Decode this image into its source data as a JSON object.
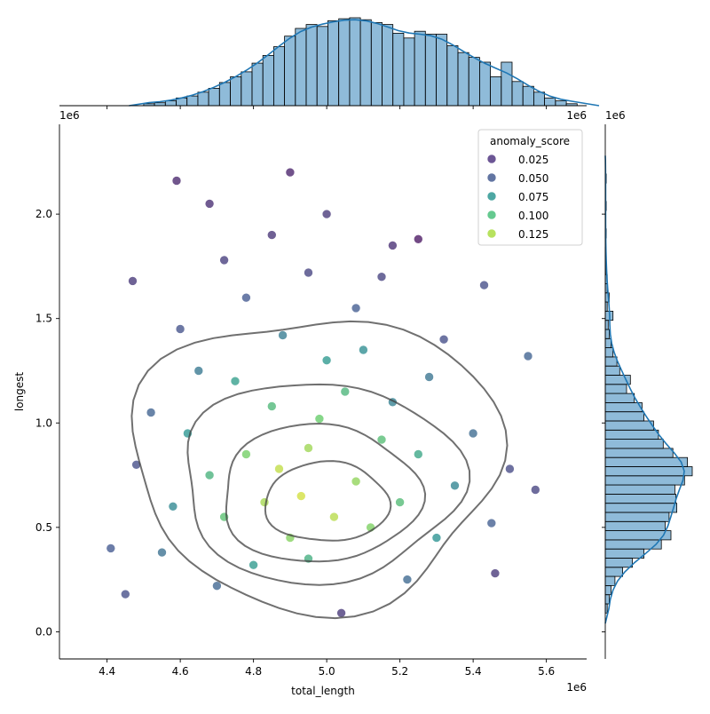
{
  "chart_data": {
    "type": "scatter",
    "title": "",
    "xlabel": "total_length",
    "ylabel": "longest",
    "x_offset_label": "1e6",
    "y_offset_label": "1e6",
    "xlim": [
      4.27,
      5.71
    ],
    "ylim": [
      -0.13,
      2.43
    ],
    "x_ticks": [
      4.4,
      4.6,
      4.8,
      5.0,
      5.2,
      5.4,
      5.6
    ],
    "x_tick_labels": [
      "4.4",
      "4.6",
      "4.8",
      "5.0",
      "5.2",
      "5.4",
      "5.6"
    ],
    "y_ticks": [
      0.0,
      0.5,
      1.0,
      1.5,
      2.0
    ],
    "y_tick_labels": [
      "0.0",
      "0.5",
      "1.0",
      "1.5",
      "2.0"
    ],
    "grid": false,
    "legend": {
      "title": "anomaly_score",
      "placement": "top-right",
      "entries": [
        {
          "label": "0.025",
          "color": "#472c7a"
        },
        {
          "label": "0.050",
          "color": "#3b528b"
        },
        {
          "label": "0.075",
          "color": "#21918c"
        },
        {
          "label": "0.100",
          "color": "#3fbc73"
        },
        {
          "label": "0.125",
          "color": "#a5db36"
        }
      ]
    },
    "colormap": "viridis",
    "color_range": [
      0.0,
      0.14
    ],
    "points": [
      [
        4.93,
        0.65,
        0.13
      ],
      [
        4.87,
        0.78,
        0.126
      ],
      [
        5.02,
        0.55,
        0.124
      ],
      [
        4.95,
        0.88,
        0.118
      ],
      [
        4.83,
        0.62,
        0.12
      ],
      [
        5.08,
        0.72,
        0.115
      ],
      [
        4.98,
        1.02,
        0.105
      ],
      [
        4.78,
        0.85,
        0.108
      ],
      [
        5.12,
        0.5,
        0.11
      ],
      [
        4.9,
        0.45,
        0.112
      ],
      [
        5.15,
        0.92,
        0.095
      ],
      [
        4.72,
        0.55,
        0.098
      ],
      [
        5.05,
        1.15,
        0.09
      ],
      [
        4.85,
        1.08,
        0.092
      ],
      [
        5.2,
        0.62,
        0.094
      ],
      [
        4.68,
        0.75,
        0.088
      ],
      [
        4.95,
        0.35,
        0.085
      ],
      [
        5.25,
        0.85,
        0.08
      ],
      [
        4.75,
        1.2,
        0.075
      ],
      [
        5.0,
        1.3,
        0.072
      ],
      [
        4.62,
        0.95,
        0.07
      ],
      [
        5.3,
        0.45,
        0.068
      ],
      [
        4.8,
        0.32,
        0.073
      ],
      [
        5.1,
        1.35,
        0.065
      ],
      [
        4.58,
        0.6,
        0.062
      ],
      [
        5.35,
        0.7,
        0.06
      ],
      [
        4.88,
        1.42,
        0.055
      ],
      [
        5.18,
        1.1,
        0.058
      ],
      [
        4.65,
        1.25,
        0.052
      ],
      [
        5.28,
        1.22,
        0.05
      ],
      [
        4.55,
        0.38,
        0.048
      ],
      [
        5.4,
        0.95,
        0.045
      ],
      [
        4.7,
        0.22,
        0.042
      ],
      [
        5.22,
        0.25,
        0.044
      ],
      [
        4.52,
        1.05,
        0.04
      ],
      [
        5.45,
        0.52,
        0.038
      ],
      [
        4.78,
        1.6,
        0.035
      ],
      [
        5.08,
        1.55,
        0.036
      ],
      [
        4.6,
        1.45,
        0.032
      ],
      [
        5.32,
        1.4,
        0.03
      ],
      [
        4.48,
        0.8,
        0.03
      ],
      [
        5.5,
        0.78,
        0.028
      ],
      [
        4.95,
        1.72,
        0.025
      ],
      [
        4.72,
        1.78,
        0.022
      ],
      [
        5.15,
        1.7,
        0.024
      ],
      [
        4.85,
        1.9,
        0.018
      ],
      [
        5.0,
        2.0,
        0.02
      ],
      [
        4.68,
        2.05,
        0.015
      ],
      [
        5.18,
        1.85,
        0.016
      ],
      [
        4.9,
        2.2,
        0.01
      ],
      [
        4.59,
        2.16,
        0.012
      ],
      [
        5.25,
        1.88,
        0.005
      ],
      [
        5.04,
        0.09,
        0.02
      ],
      [
        4.45,
        0.18,
        0.03
      ],
      [
        5.57,
        0.68,
        0.025
      ],
      [
        5.46,
        0.28,
        0.02
      ],
      [
        4.41,
        0.4,
        0.035
      ],
      [
        4.47,
        1.68,
        0.02
      ],
      [
        5.55,
        1.32,
        0.04
      ],
      [
        5.43,
        1.66,
        0.03
      ]
    ],
    "contour_levels": 4,
    "top_marginal": {
      "type": "histogram",
      "bin_start": 4.5,
      "bin_width": 0.0296,
      "counts": [
        2,
        3,
        5,
        8,
        10,
        14,
        18,
        24,
        30,
        35,
        44,
        52,
        61,
        72,
        80,
        84,
        82,
        88,
        90,
        91,
        89,
        86,
        84,
        75,
        70,
        77,
        74,
        74,
        62,
        55,
        50,
        45,
        30,
        45,
        25,
        20,
        14,
        8,
        5,
        2
      ],
      "kde": true
    },
    "right_marginal": {
      "type": "histogram",
      "bin_start": 0.09,
      "bin_width": 0.0438,
      "counts": [
        2,
        4,
        6,
        10,
        18,
        28,
        40,
        58,
        68,
        62,
        66,
        74,
        73,
        72,
        82,
        90,
        85,
        70,
        60,
        55,
        50,
        40,
        38,
        30,
        22,
        26,
        15,
        12,
        8,
        6,
        4,
        3,
        8,
        2,
        4,
        2,
        2,
        1,
        1,
        1,
        0,
        1,
        0,
        0,
        1,
        0,
        0,
        1,
        0,
        0
      ],
      "kde": true
    }
  }
}
